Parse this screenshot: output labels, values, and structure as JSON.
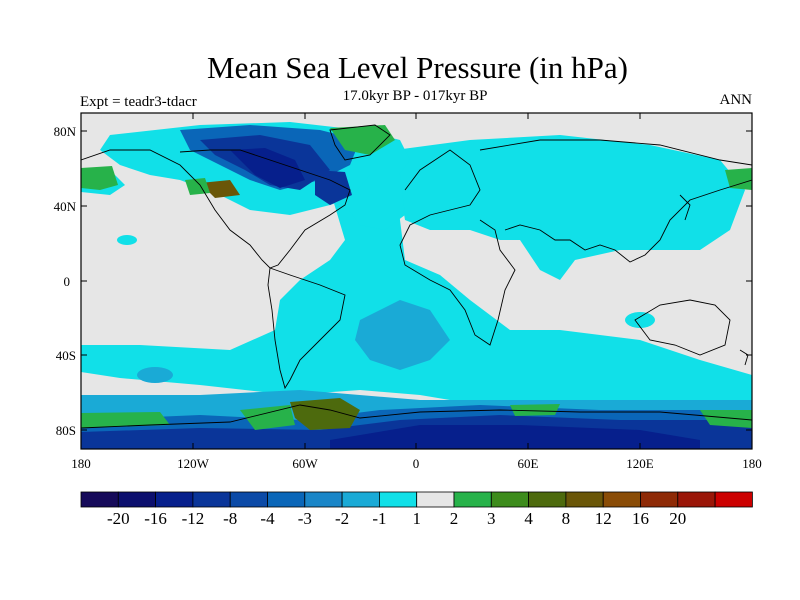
{
  "header": {
    "title": "Mean Sea Level Pressure (in hPa)",
    "subtitle": "17.0kyr BP - 017kyr BP",
    "left_label": "Expt = teadr3-tdacr",
    "right_label": "ANN"
  },
  "axes": {
    "lat_ticks": [
      "80N",
      "40N",
      "0",
      "40S",
      "80S"
    ],
    "lon_ticks": [
      "180",
      "120W",
      "60W",
      "0",
      "60E",
      "120E",
      "180"
    ]
  },
  "colorbar": {
    "colors": [
      "#160a5a",
      "#0c0f6e",
      "#061f8c",
      "#0a3599",
      "#0b4aa7",
      "#0a66b8",
      "#1a86c8",
      "#1aaad6",
      "#11e0e8",
      "#e6e6e6",
      "#27b24a",
      "#3d8c1c",
      "#4d6a0d",
      "#6a5608",
      "#8a4c06",
      "#8e2a06",
      "#9a1608",
      "#cc0000"
    ],
    "labels": [
      "-20",
      "-16",
      "-12",
      "-8",
      "-4",
      "-3",
      "-2",
      "-1",
      "1",
      "2",
      "3",
      "4",
      "8",
      "12",
      "16",
      "20"
    ]
  },
  "map_colors": {
    "neutral": "#e6e6e6",
    "light_cyan": "#11e0e8",
    "mid_cyan": "#1aaad6",
    "blue": "#0a66b8",
    "deep_blue": "#0a3599",
    "navy": "#061f8c",
    "green": "#27b24a",
    "olive": "#4d6a0d",
    "brown": "#6a5608"
  }
}
